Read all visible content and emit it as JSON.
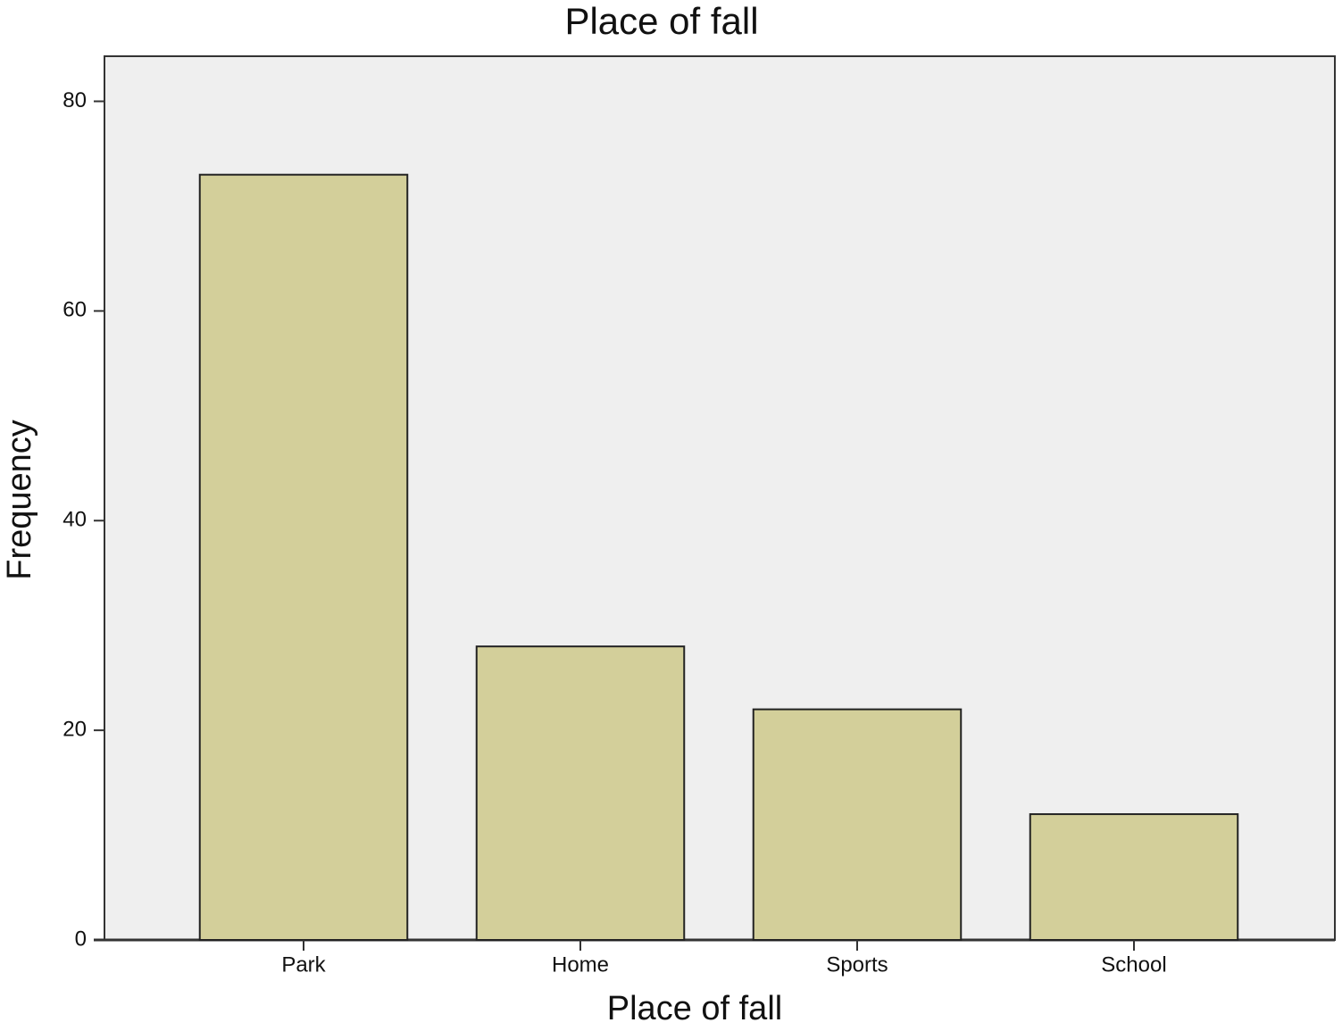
{
  "chart_data": {
    "type": "bar",
    "title": "Place of fall",
    "x_label": "Place of fall",
    "y_label": "Frequency",
    "categories": [
      "Park",
      "Home",
      "Sports",
      "School"
    ],
    "values": [
      73,
      28,
      22,
      12
    ],
    "color": "#d3cf9a",
    "ylim": [
      0,
      84.3
    ],
    "yticks": [
      0,
      20,
      40,
      60,
      80
    ],
    "grid": false
  }
}
